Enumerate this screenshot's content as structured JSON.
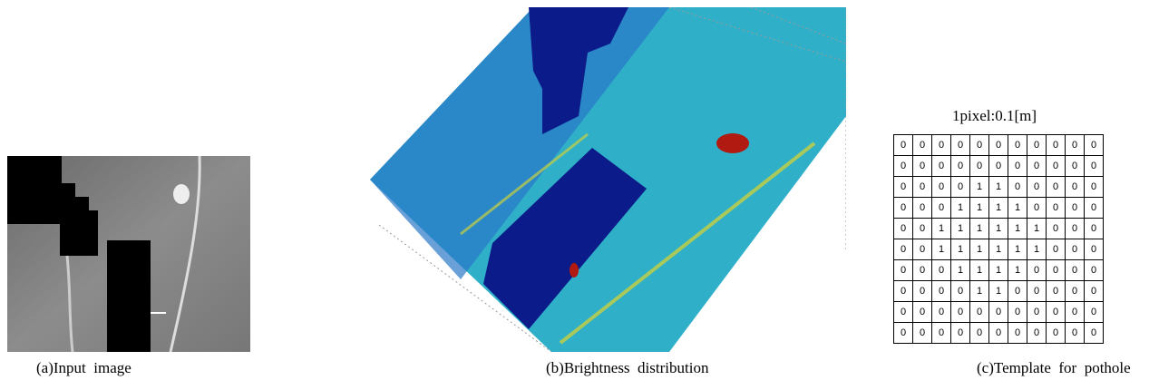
{
  "figure": {
    "panel_a": {
      "caption": "(a)Input  image"
    },
    "panel_b": {
      "caption": "(b)Brightness  distribution"
    },
    "panel_c": {
      "scale_label": "1pixel:0.1[m]",
      "caption": "(c)Template  for  pothole",
      "grid": [
        [
          0,
          0,
          0,
          0,
          0,
          0,
          0,
          0,
          0,
          0,
          0
        ],
        [
          0,
          0,
          0,
          0,
          0,
          0,
          0,
          0,
          0,
          0,
          0
        ],
        [
          0,
          0,
          0,
          0,
          1,
          1,
          0,
          0,
          0,
          0,
          0
        ],
        [
          0,
          0,
          0,
          1,
          1,
          1,
          1,
          0,
          0,
          0,
          0
        ],
        [
          0,
          0,
          1,
          1,
          1,
          1,
          1,
          1,
          0,
          0,
          0
        ],
        [
          0,
          0,
          1,
          1,
          1,
          1,
          1,
          1,
          0,
          0,
          0
        ],
        [
          0,
          0,
          0,
          1,
          1,
          1,
          1,
          0,
          0,
          0,
          0
        ],
        [
          0,
          0,
          0,
          0,
          1,
          1,
          0,
          0,
          0,
          0,
          0
        ],
        [
          0,
          0,
          0,
          0,
          0,
          0,
          0,
          0,
          0,
          0,
          0
        ],
        [
          0,
          0,
          0,
          0,
          0,
          0,
          0,
          0,
          0,
          0,
          0
        ]
      ]
    }
  }
}
